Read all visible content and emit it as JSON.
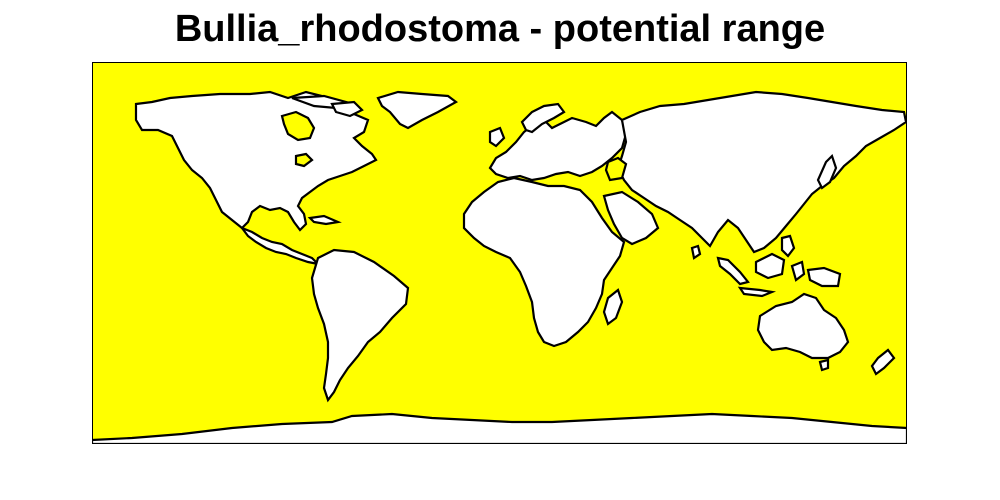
{
  "title": "Bullia_rhodostoma - potential range",
  "map": {
    "ocean_color": "#ffff00",
    "land_color": "#ffffff",
    "outline_color": "#000000",
    "projection": "equirectangular",
    "frame": "box"
  }
}
